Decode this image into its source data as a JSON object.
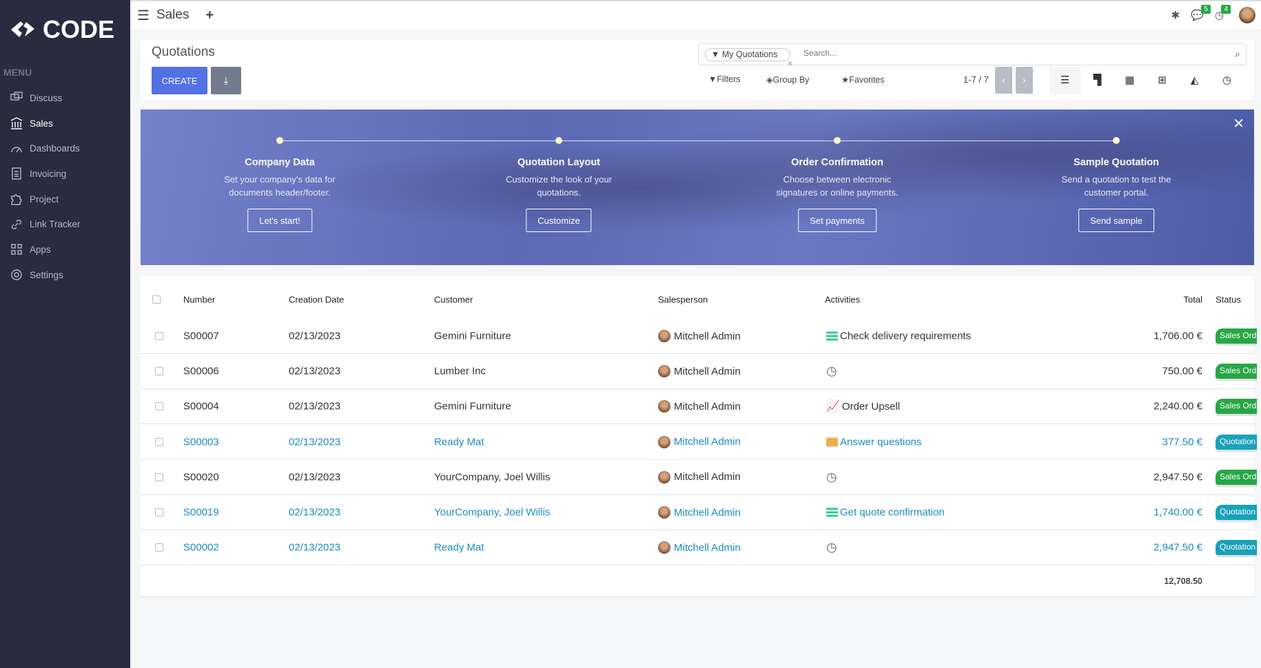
{
  "sidebar": {
    "brand": "CODE",
    "menu_label": "MENU",
    "items": [
      {
        "label": "Discuss",
        "icon": "discuss-icon"
      },
      {
        "label": "Sales",
        "icon": "sales-icon",
        "active": true
      },
      {
        "label": "Dashboards",
        "icon": "dashboard-icon"
      },
      {
        "label": "Invoicing",
        "icon": "invoice-icon"
      },
      {
        "label": "Project",
        "icon": "puzzle-icon"
      },
      {
        "label": "Link Tracker",
        "icon": "link-icon"
      },
      {
        "label": "Apps",
        "icon": "apps-icon"
      },
      {
        "label": "Settings",
        "icon": "gear-icon"
      }
    ]
  },
  "topbar": {
    "app_title": "Sales",
    "messages_count": "5",
    "activities_count": "4"
  },
  "control": {
    "title": "Quotations",
    "create_label": "CREATE",
    "facet": "My Quotations",
    "search_placeholder": "Search...",
    "filters": "Filters",
    "group_by": "Group By",
    "favorites": "Favorites",
    "pager": "1-7 / 7"
  },
  "banner": {
    "steps": [
      {
        "title": "Company Data",
        "desc": "Set your company's data for documents header/footer.",
        "button": "Let's start!"
      },
      {
        "title": "Quotation Layout",
        "desc": "Customize the look of your quotations.",
        "button": "Customize"
      },
      {
        "title": "Order Confirmation",
        "desc": "Choose between electronic signatures or online payments.",
        "button": "Set payments"
      },
      {
        "title": "Sample Quotation",
        "desc": "Send a quotation to test the customer portal.",
        "button": "Send sample"
      }
    ]
  },
  "table": {
    "headers": {
      "number": "Number",
      "date": "Creation Date",
      "customer": "Customer",
      "salesperson": "Salesperson",
      "activities": "Activities",
      "total": "Total",
      "status": "Status"
    },
    "rows": [
      {
        "number": "S00007",
        "date": "02/13/2023",
        "customer": "Gemini Furniture",
        "salesperson": "Mitchell Admin",
        "activity": "Check delivery requirements",
        "activity_icon": "list-icon",
        "total": "1,706.00 €",
        "status": "Sales Order",
        "link": false
      },
      {
        "number": "S00006",
        "date": "02/13/2023",
        "customer": "Lumber Inc",
        "salesperson": "Mitchell Admin",
        "activity": "",
        "activity_icon": "clock-icon",
        "total": "750.00 €",
        "status": "Sales Order",
        "link": false
      },
      {
        "number": "S00004",
        "date": "02/13/2023",
        "customer": "Gemini Furniture",
        "salesperson": "Mitchell Admin",
        "activity": "Order Upsell",
        "activity_icon": "chart-icon",
        "total": "2,240.00 €",
        "status": "Sales Order",
        "link": false
      },
      {
        "number": "S00003",
        "date": "02/13/2023",
        "customer": "Ready Mat",
        "salesperson": "Mitchell Admin",
        "activity": "Answer questions",
        "activity_icon": "envelope-icon",
        "total": "377.50 €",
        "status": "Quotation",
        "link": true
      },
      {
        "number": "S00020",
        "date": "02/13/2023",
        "customer": "YourCompany, Joel Willis",
        "salesperson": "Mitchell Admin",
        "activity": "",
        "activity_icon": "clock-icon",
        "total": "2,947.50 €",
        "status": "Sales Order",
        "link": false
      },
      {
        "number": "S00019",
        "date": "02/13/2023",
        "customer": "YourCompany, Joel Willis",
        "salesperson": "Mitchell Admin",
        "activity": "Get quote confirmation",
        "activity_icon": "list-icon",
        "total": "1,740.00 €",
        "status": "Quotation",
        "link": true
      },
      {
        "number": "S00002",
        "date": "02/13/2023",
        "customer": "Ready Mat",
        "salesperson": "Mitchell Admin",
        "activity": "",
        "activity_icon": "clock-icon",
        "total": "2,947.50 €",
        "status": "Quotation",
        "link": true
      }
    ],
    "grand_total": "12,708.50"
  },
  "colors": {
    "sidebar": "#292c3f",
    "primary": "#5371e3",
    "link": "#1a8cbf",
    "sales_order": "#28a745",
    "quotation": "#17a2b8"
  }
}
